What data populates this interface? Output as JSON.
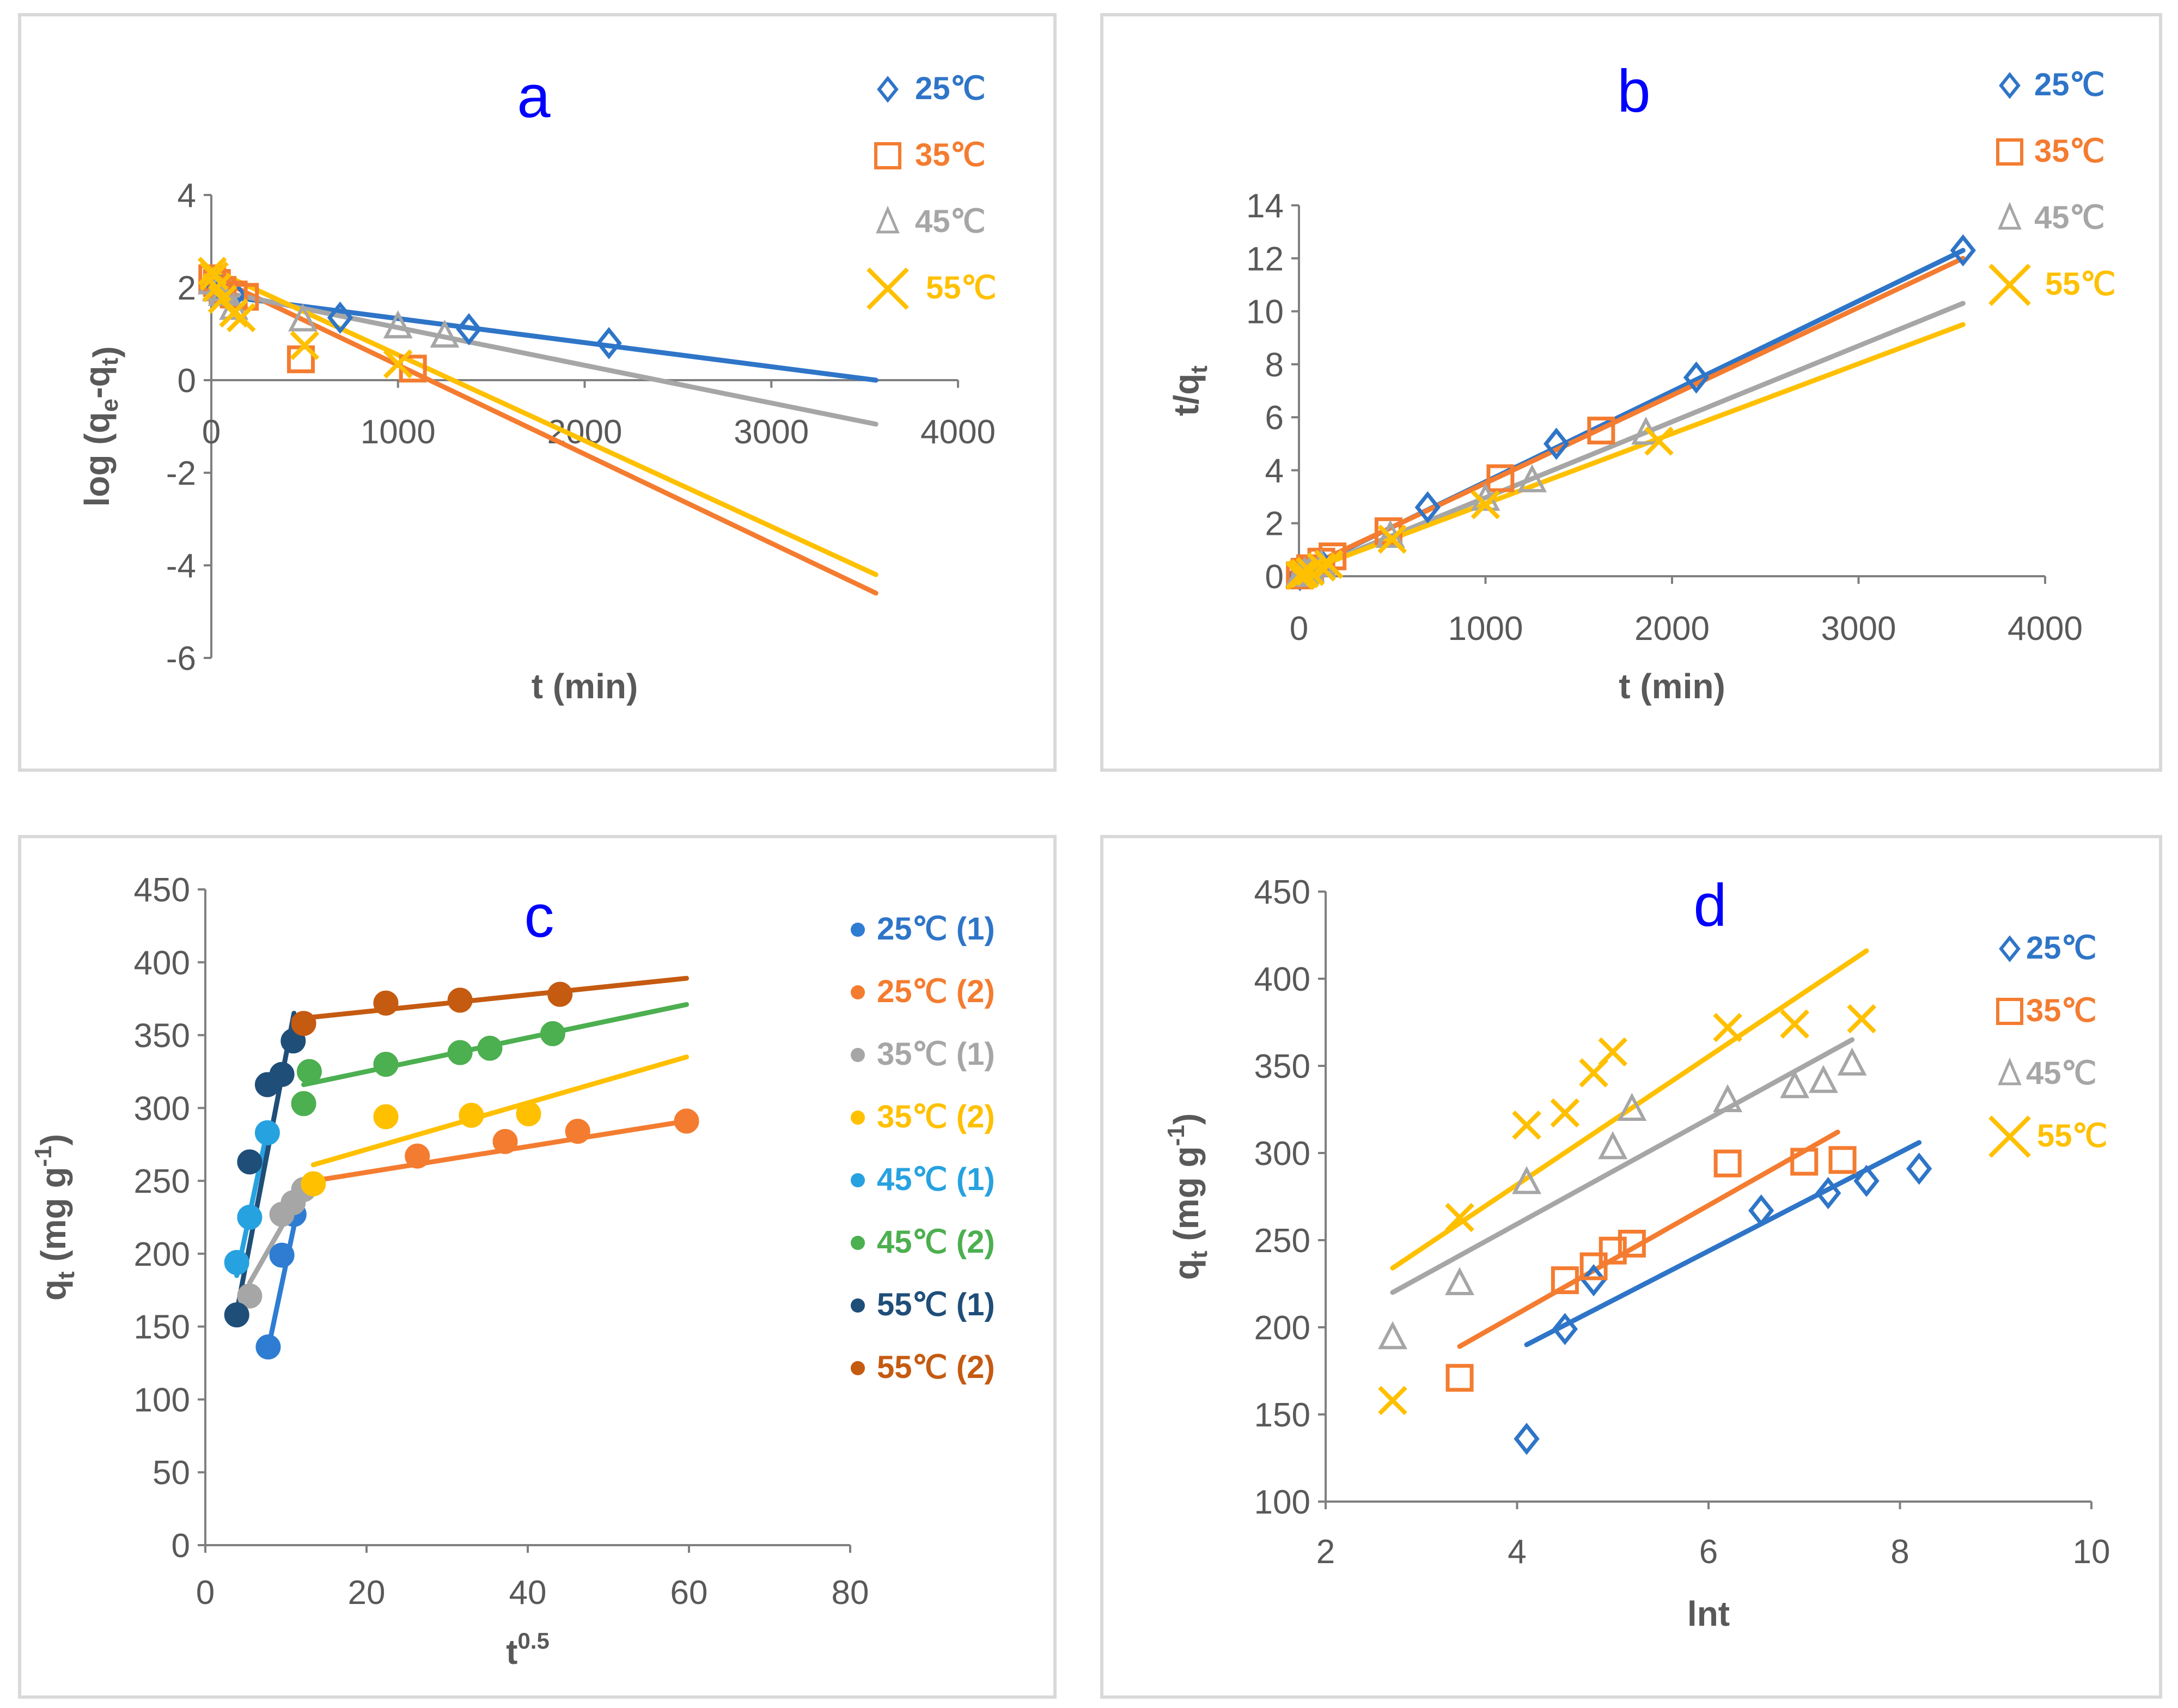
{
  "figure": {
    "colors": {
      "blue": "#2e75c8",
      "orange": "#f47c30",
      "gray": "#a6a6a6",
      "yellow": "#ffc000",
      "lightblue": "#27a2e0",
      "green": "#4caf50",
      "navy": "#1f4e79",
      "brown": "#c55a11",
      "medblue": "#2e7dd2"
    }
  },
  "chart_data": [
    {
      "id": "a",
      "type": "scatter",
      "letter": "a",
      "xlabel": "t (min)",
      "ylabel": "log (qe-qt)",
      "ylabel_parts": {
        "main": "log (q",
        "s1": "e",
        "mid": "-q",
        "s2": "t",
        "end": ")"
      },
      "xlim": [
        0,
        4000
      ],
      "ylim": [
        -6,
        4
      ],
      "xticks": [
        0,
        1000,
        2000,
        3000,
        4000
      ],
      "yticks": [
        4,
        2,
        0,
        -2,
        -4,
        -6
      ],
      "x_axis_at": 0,
      "series": [
        {
          "name": "25℃",
          "color": "#2e75c8",
          "marker": "diamond",
          "labelColor": "#2e75c8",
          "x": [
            5,
            30,
            60,
            120,
            690,
            1380,
            2130
          ],
          "y": [
            2.05,
            2.0,
            1.95,
            1.85,
            1.35,
            1.1,
            0.8
          ],
          "fit": [
            [
              0,
              1.85
            ],
            [
              3560,
              0.0
            ]
          ]
        },
        {
          "name": "35℃",
          "color": "#f47c30",
          "marker": "square",
          "labelColor": "#f47c30",
          "x": [
            5,
            30,
            60,
            120,
            180,
            480,
            1080
          ],
          "y": [
            2.2,
            2.1,
            1.95,
            1.85,
            1.8,
            0.45,
            0.25
          ],
          "fit": [
            [
              0,
              2.25
            ],
            [
              3560,
              -4.6
            ]
          ]
        },
        {
          "name": "45℃",
          "color": "#a6a6a6",
          "marker": "triangle",
          "labelColor": "#a6a6a6",
          "x": [
            5,
            30,
            60,
            120,
            490,
            1000,
            1250
          ],
          "y": [
            2.1,
            1.95,
            1.85,
            1.55,
            1.3,
            1.15,
            0.95
          ],
          "fit": [
            [
              0,
              1.95
            ],
            [
              3560,
              -0.95
            ]
          ]
        },
        {
          "name": "55℃",
          "color": "#ffc000",
          "marker": "cross",
          "labelColor": "#ffc000",
          "x": [
            5,
            15,
            30,
            60,
            120,
            160,
            500,
            1000
          ],
          "y": [
            2.35,
            2.25,
            2.0,
            1.75,
            1.45,
            1.35,
            0.75,
            0.35
          ],
          "fit": [
            [
              0,
              2.4
            ],
            [
              3560,
              -4.2
            ]
          ]
        }
      ]
    },
    {
      "id": "b",
      "type": "scatter",
      "letter": "b",
      "xlabel": "t (min)",
      "ylabel": "t/qt",
      "ylabel_parts": {
        "main": "t/q",
        "s1": "t"
      },
      "xlim": [
        0,
        4000
      ],
      "ylim": [
        0,
        14
      ],
      "xticks": [
        0,
        1000,
        2000,
        3000,
        4000
      ],
      "yticks": [
        14,
        12,
        10,
        8,
        6,
        4,
        2,
        0
      ],
      "x_axis_at": 0,
      "series": [
        {
          "name": "25℃",
          "color": "#2e75c8",
          "marker": "diamond",
          "labelColor": "#2e75c8",
          "x": [
            5,
            30,
            60,
            120,
            690,
            1380,
            2130,
            3560
          ],
          "y": [
            0.04,
            0.14,
            0.25,
            0.45,
            2.6,
            5.0,
            7.5,
            12.3
          ],
          "fit": [
            [
              0,
              0.15
            ],
            [
              3560,
              12.3
            ]
          ]
        },
        {
          "name": "35℃",
          "color": "#f47c30",
          "marker": "square",
          "labelColor": "#f47c30",
          "x": [
            5,
            30,
            60,
            120,
            180,
            480,
            1080,
            1620
          ],
          "y": [
            0.03,
            0.17,
            0.3,
            0.55,
            0.75,
            1.7,
            3.7,
            5.5
          ],
          "fit": [
            [
              0,
              0.2
            ],
            [
              3560,
              12.0
            ]
          ]
        },
        {
          "name": "45℃",
          "color": "#a6a6a6",
          "marker": "triangle",
          "labelColor": "#a6a6a6",
          "x": [
            5,
            30,
            60,
            120,
            490,
            1000,
            1250,
            1860
          ],
          "y": [
            0.03,
            0.12,
            0.22,
            0.4,
            1.5,
            2.9,
            3.6,
            5.4
          ],
          "fit": [
            [
              0,
              0.1
            ],
            [
              3560,
              10.3
            ]
          ]
        },
        {
          "name": "55℃",
          "color": "#ffc000",
          "marker": "cross",
          "labelColor": "#ffc000",
          "x": [
            5,
            15,
            30,
            60,
            120,
            160,
            500,
            1000,
            1930
          ],
          "y": [
            0.03,
            0.06,
            0.1,
            0.18,
            0.35,
            0.45,
            1.4,
            2.7,
            5.1
          ],
          "fit": [
            [
              0,
              0.1
            ],
            [
              3560,
              9.5
            ]
          ]
        }
      ]
    },
    {
      "id": "c",
      "type": "scatter",
      "letter": "c",
      "xlabel": "t^0.5",
      "xlabel_parts": {
        "main": "t",
        "sup": "0.5"
      },
      "ylabel": "qt (mg g-1)",
      "ylabel_parts": {
        "main": "q",
        "s1": "t",
        "mid": " (mg g",
        "sup": "-1",
        "end": ")"
      },
      "xlim": [
        0,
        80
      ],
      "ylim": [
        0,
        450
      ],
      "xticks": [
        0,
        20,
        40,
        60,
        80
      ],
      "yticks": [
        450,
        400,
        350,
        300,
        250,
        200,
        150,
        100,
        50,
        0
      ],
      "x_axis_at": 0,
      "series": [
        {
          "name": "25℃ (1)",
          "color": "#2e7dd2",
          "marker": "circle",
          "labelColor": "#2e75c8",
          "x": [
            7.8,
            9.5,
            11.0
          ],
          "y": [
            136,
            199,
            227
          ],
          "fit": [
            [
              8.0,
              140
            ],
            [
              11.8,
              240
            ]
          ]
        },
        {
          "name": "25℃ (2)",
          "color": "#f47c30",
          "marker": "circle",
          "labelColor": "#f47c30",
          "x": [
            26.3,
            37.2,
            46.2,
            59.7
          ],
          "y": [
            267,
            277,
            284,
            291
          ],
          "fit": [
            [
              13.4,
              250
            ],
            [
              59.7,
              291
            ]
          ]
        },
        {
          "name": "35℃ (1)",
          "color": "#a6a6a6",
          "marker": "circle",
          "labelColor": "#a6a6a6",
          "x": [
            5.5,
            9.5,
            10.9,
            12.2
          ],
          "y": [
            171,
            227,
            235,
            244
          ],
          "fit": [
            [
              5.5,
              180
            ],
            [
              12.2,
              245
            ]
          ]
        },
        {
          "name": "35℃ (2)",
          "color": "#ffc000",
          "marker": "circle",
          "labelColor": "#ffc000",
          "x": [
            13.4,
            22.4,
            33.0,
            40.1
          ],
          "y": [
            248,
            294,
            295,
            296
          ],
          "fit": [
            [
              13.4,
              261
            ],
            [
              59.7,
              335
            ]
          ]
        },
        {
          "name": "45℃ (1)",
          "color": "#27a2e0",
          "marker": "circle",
          "labelColor": "#27a2e0",
          "x": [
            3.9,
            5.5,
            7.7
          ],
          "y": [
            194,
            225,
            283
          ],
          "fit": [
            [
              3.9,
              185
            ],
            [
              7.7,
              285
            ]
          ]
        },
        {
          "name": "45℃ (2)",
          "color": "#4caf50",
          "marker": "circle",
          "labelColor": "#4caf50",
          "x": [
            12.2,
            12.9,
            22.4,
            31.6,
            35.3,
            43.1
          ],
          "y": [
            303,
            325,
            330,
            338,
            341,
            351
          ],
          "fit": [
            [
              12.2,
              316
            ],
            [
              59.7,
              371
            ]
          ]
        },
        {
          "name": "55℃ (1)",
          "color": "#1f4e79",
          "marker": "circle",
          "labelColor": "#1f4e79",
          "x": [
            3.9,
            5.5,
            7.7,
            9.5,
            10.9
          ],
          "y": [
            158,
            263,
            316,
            323,
            346
          ],
          "fit": [
            [
              3.9,
              160
            ],
            [
              11.0,
              365
            ]
          ]
        },
        {
          "name": "55℃ (2)",
          "color": "#c55a11",
          "marker": "circle",
          "labelColor": "#c55a11",
          "x": [
            12.2,
            22.4,
            31.6,
            44.0
          ],
          "y": [
            358,
            372,
            374,
            378
          ],
          "fit": [
            [
              11.0,
              361
            ],
            [
              59.7,
              389
            ]
          ]
        }
      ]
    },
    {
      "id": "d",
      "type": "scatter",
      "letter": "d",
      "xlabel": "lnt",
      "ylabel": "qt (mg g-1)",
      "ylabel_parts": {
        "main": "q",
        "s1": "t",
        "mid": " (mg g",
        "sup": "-1",
        "end": ")"
      },
      "xlim": [
        2,
        10
      ],
      "ylim": [
        100,
        450
      ],
      "xticks": [
        2,
        4,
        6,
        8,
        10
      ],
      "yticks": [
        450,
        400,
        350,
        300,
        250,
        200,
        150,
        100
      ],
      "x_axis_at": 100,
      "series": [
        {
          "name": "25℃",
          "color": "#2e75c8",
          "marker": "diamond",
          "labelColor": "#2e75c8",
          "x": [
            4.1,
            4.5,
            4.8,
            6.55,
            7.25,
            7.65,
            8.2
          ],
          "y": [
            136,
            199,
            227,
            267,
            277,
            284,
            291
          ],
          "fit": [
            [
              4.1,
              190
            ],
            [
              8.2,
              306
            ]
          ]
        },
        {
          "name": "35℃",
          "color": "#f47c30",
          "marker": "square",
          "labelColor": "#f47c30",
          "x": [
            3.4,
            4.5,
            4.8,
            5.0,
            5.2,
            6.2,
            7.0,
            7.4
          ],
          "y": [
            171,
            227,
            235,
            244,
            248,
            294,
            295,
            296
          ],
          "fit": [
            [
              3.4,
              189
            ],
            [
              7.35,
              312
            ]
          ]
        },
        {
          "name": "45℃",
          "color": "#a6a6a6",
          "marker": "triangle",
          "labelColor": "#a6a6a6",
          "x": [
            2.7,
            3.4,
            4.1,
            5.0,
            5.2,
            6.2,
            6.9,
            7.2,
            7.5
          ],
          "y": [
            194,
            225,
            283,
            303,
            325,
            330,
            338,
            341,
            351
          ],
          "fit": [
            [
              2.7,
              220
            ],
            [
              7.5,
              365
            ]
          ]
        },
        {
          "name": "55℃",
          "color": "#ffc000",
          "marker": "cross",
          "labelColor": "#ffc000",
          "x": [
            2.7,
            3.4,
            4.1,
            4.5,
            4.8,
            5.0,
            6.2,
            6.9,
            7.6
          ],
          "y": [
            158,
            263,
            316,
            323,
            346,
            358,
            372,
            374,
            377
          ],
          "fit": [
            [
              2.7,
              234
            ],
            [
              7.65,
              416
            ]
          ]
        }
      ]
    }
  ]
}
